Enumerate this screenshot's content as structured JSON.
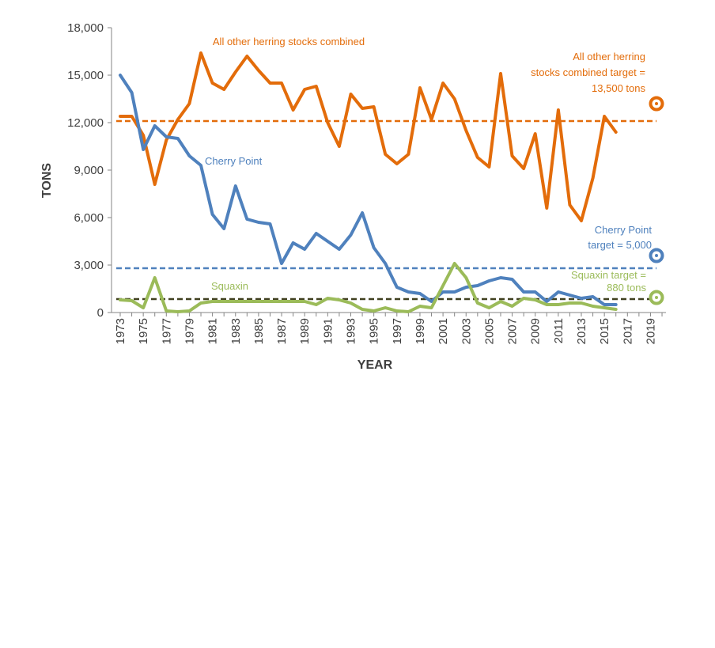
{
  "chart_data": {
    "type": "line",
    "title": "",
    "xlabel": "YEAR",
    "ylabel": "TONS",
    "xlim": [
      1973,
      2020
    ],
    "ylim": [
      0,
      18000
    ],
    "y_ticks": [
      0,
      3000,
      6000,
      9000,
      12000,
      15000,
      18000
    ],
    "y_tick_labels": [
      "0",
      "3,000",
      "6,000",
      "9,000",
      "12,000",
      "15,000",
      "18,000"
    ],
    "x_ticks": [
      1973,
      1975,
      1977,
      1979,
      1981,
      1983,
      1985,
      1987,
      1989,
      1991,
      1993,
      1995,
      1997,
      1999,
      2001,
      2003,
      2005,
      2007,
      2009,
      2011,
      2013,
      2015,
      2017,
      2019
    ],
    "x_tick_labels": [
      "1973",
      "1975",
      "1977",
      "1979",
      "1981",
      "1983",
      "1985",
      "1987",
      "1989",
      "1991",
      "1993",
      "1995",
      "1997",
      "1999",
      "2001",
      "2003",
      "2005",
      "2007",
      "2009",
      "2011",
      "2013",
      "2015",
      "2017",
      "2019"
    ],
    "grid": false,
    "legend": "none",
    "series": [
      {
        "key": "other",
        "label": "All other  herring stocks combined",
        "color": "#e36c0a",
        "x": [
          1973,
          1974,
          1975,
          1976,
          1977,
          1978,
          1979,
          1980,
          1981,
          1982,
          1983,
          1984,
          1985,
          1986,
          1987,
          1988,
          1989,
          1990,
          1991,
          1992,
          1993,
          1994,
          1995,
          1996,
          1997,
          1998,
          1999,
          2000,
          2001,
          2002,
          2003,
          2004,
          2005,
          2006,
          2007,
          2008,
          2009,
          2010,
          2011,
          2012,
          2013,
          2014,
          2015,
          2016
        ],
        "y": [
          12400,
          12400,
          11200,
          8100,
          10900,
          12200,
          13200,
          16400,
          14500,
          14100,
          15200,
          16200,
          15300,
          14500,
          14500,
          12800,
          14100,
          14300,
          12000,
          10500,
          13800,
          12900,
          13000,
          10000,
          9400,
          10000,
          14200,
          12200,
          14500,
          13500,
          11500,
          9800,
          9200,
          15100,
          9900,
          9100,
          11300,
          6600,
          12800,
          6800,
          5800,
          8500,
          12400,
          11400
        ]
      },
      {
        "key": "cherry",
        "label": "Cherry Point",
        "color": "#4f81bd",
        "x": [
          1973,
          1974,
          1975,
          1976,
          1977,
          1978,
          1979,
          1980,
          1981,
          1982,
          1983,
          1984,
          1985,
          1986,
          1987,
          1988,
          1989,
          1990,
          1991,
          1992,
          1993,
          1994,
          1995,
          1996,
          1997,
          1998,
          1999,
          2000,
          2001,
          2002,
          2003,
          2004,
          2005,
          2006,
          2007,
          2008,
          2009,
          2010,
          2011,
          2012,
          2013,
          2014,
          2015,
          2016
        ],
        "y": [
          15000,
          13900,
          10300,
          11800,
          11100,
          11000,
          9900,
          9300,
          6200,
          5300,
          8000,
          5900,
          5700,
          5600,
          3100,
          4400,
          4000,
          5000,
          4500,
          4000,
          4900,
          6300,
          4100,
          3100,
          1600,
          1300,
          1200,
          700,
          1300,
          1300,
          1600,
          1700,
          2000,
          2200,
          2100,
          1300,
          1300,
          700,
          1300,
          1100,
          900,
          1000,
          500,
          500
        ]
      },
      {
        "key": "squaxin",
        "label": "Squaxin",
        "color": "#9bbb59",
        "x": [
          1973,
          1974,
          1975,
          1976,
          1977,
          1978,
          1979,
          1980,
          1981,
          1982,
          1983,
          1984,
          1985,
          1986,
          1987,
          1988,
          1989,
          1990,
          1991,
          1992,
          1993,
          1994,
          1995,
          1996,
          1997,
          1998,
          1999,
          2000,
          2001,
          2002,
          2003,
          2004,
          2005,
          2006,
          2007,
          2008,
          2009,
          2010,
          2011,
          2012,
          2013,
          2014,
          2015,
          2016
        ],
        "y": [
          800,
          750,
          300,
          2200,
          100,
          50,
          100,
          600,
          700,
          700,
          700,
          700,
          700,
          700,
          700,
          700,
          700,
          500,
          900,
          800,
          600,
          200,
          100,
          300,
          100,
          50,
          400,
          300,
          1700,
          3100,
          2200,
          600,
          300,
          700,
          400,
          900,
          800,
          500,
          500,
          600,
          600,
          400,
          300,
          200
        ]
      }
    ],
    "targets": [
      {
        "key": "other",
        "value": 13500,
        "label_lines": [
          "All other herring",
          "stocks combined target =",
          "13,500 tons"
        ],
        "color": "#e36c0a"
      },
      {
        "key": "cherry",
        "value": 5000,
        "label_lines": [
          "Cherry Point",
          "target = 5,000"
        ],
        "color": "#4f81bd"
      },
      {
        "key": "squaxin",
        "value": 880,
        "label_lines": [
          "Squaxin target =",
          "880 tons"
        ],
        "color": "#9bbb59"
      }
    ],
    "dashed_lines": [
      {
        "key": "other",
        "y": 12100,
        "color": "#e36c0a"
      },
      {
        "key": "cherry",
        "y": 2800,
        "color": "#4f81bd"
      },
      {
        "key": "squaxin",
        "y": 850,
        "color": "#404020"
      }
    ]
  }
}
